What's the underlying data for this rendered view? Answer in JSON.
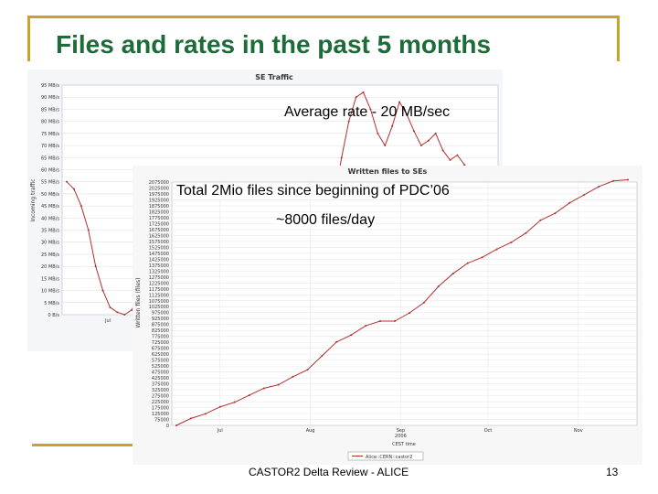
{
  "slide": {
    "title": "Files and rates in the past 5 months",
    "annotation_average_rate": "Average rate - 20 MB/sec",
    "annotation_total_files": "Total 2Mio files since beginning of PDC’06",
    "annotation_files_per_day": "~8000 files/day",
    "footer": "CASTOR2 Delta Review - ALICE",
    "page_number": "13"
  },
  "colors": {
    "title": "#1e6b3a",
    "frame": "#c8a22a",
    "series_line": "#b03030",
    "grid": "#dcdcdc"
  },
  "chart_data": [
    {
      "type": "line",
      "title": "SE Traffic",
      "ylabel": "Incoming traffic",
      "ylim": [
        0,
        95
      ],
      "y_tick_labels": [
        "0 B/s",
        "5 MB/s",
        "10 MB/s",
        "15 MB/s",
        "20 MB/s",
        "25 MB/s",
        "30 MB/s",
        "35 MB/s",
        "40 MB/s",
        "45 MB/s",
        "50 MB/s",
        "55 MB/s",
        "60 MB/s",
        "65 MB/s",
        "70 MB/s",
        "75 MB/s",
        "80 MB/s",
        "85 MB/s",
        "90 MB/s",
        "95 MB/s"
      ],
      "x_tick_labels": [
        "Jul"
      ],
      "grid": true,
      "series": [
        {
          "x": [
            0,
            1,
            2,
            3,
            4,
            5,
            6,
            7,
            8,
            9,
            10,
            11,
            12,
            13,
            14,
            15,
            16,
            17,
            18,
            19,
            20,
            21,
            22,
            23,
            24,
            25,
            26,
            27,
            28,
            29,
            30,
            31,
            32,
            33,
            34,
            35,
            36,
            37,
            38,
            39,
            40,
            41,
            42,
            43,
            44,
            45,
            46,
            47,
            48,
            49,
            50,
            51,
            52,
            53,
            54,
            55,
            56,
            57,
            58,
            59
          ],
          "values": [
            55,
            52,
            45,
            35,
            20,
            10,
            3,
            1,
            0,
            2,
            8,
            15,
            20,
            18,
            12,
            15,
            20,
            18,
            14,
            12,
            16,
            20,
            18,
            12,
            10,
            14,
            19,
            17,
            12,
            10,
            12,
            14,
            10,
            8,
            12,
            20,
            32,
            48,
            65,
            80,
            90,
            92,
            85,
            75,
            70,
            78,
            88,
            83,
            76,
            70,
            72,
            75,
            68,
            64,
            66,
            62,
            58,
            55,
            54,
            50
          ]
        }
      ]
    },
    {
      "type": "line",
      "title": "Written files to SEs",
      "ylabel": "Written files (files)",
      "xlabel": "CEST time",
      "ylim": [
        0,
        2100000
      ],
      "y_tick_labels": [
        "0",
        "75000",
        "125000",
        "175000",
        "225000",
        "275000",
        "325000",
        "375000",
        "425000",
        "475000",
        "525000",
        "575000",
        "625000",
        "675000",
        "725000",
        "775000",
        "825000",
        "875000",
        "925000",
        "975000",
        "1025000",
        "1075000",
        "1125000",
        "1175000",
        "1225000",
        "1275000",
        "1325000",
        "1375000",
        "1425000",
        "1475000",
        "1525000",
        "1575000",
        "1625000",
        "1675000",
        "1725000",
        "1775000",
        "1825000",
        "1875000",
        "1925000",
        "1975000",
        "2025000",
        "2075000"
      ],
      "x_tick_labels": [
        "Jul",
        "Aug",
        "Sep\n2006",
        "Oct",
        "Nov"
      ],
      "legend": "bottom",
      "grid": true,
      "series": [
        {
          "name": "Alice::CERN::castor2",
          "x": [
            0,
            5,
            10,
            15,
            20,
            25,
            30,
            35,
            40,
            45,
            50,
            55,
            60,
            65,
            70,
            75,
            80,
            85,
            90,
            95,
            100,
            105,
            110,
            115,
            120,
            125,
            130,
            135,
            140,
            145,
            150,
            155
          ],
          "values": [
            0,
            60000,
            100000,
            160000,
            200000,
            260000,
            320000,
            350000,
            420000,
            480000,
            600000,
            720000,
            780000,
            860000,
            900000,
            900000,
            970000,
            1060000,
            1200000,
            1310000,
            1400000,
            1450000,
            1520000,
            1580000,
            1660000,
            1770000,
            1830000,
            1920000,
            1990000,
            2060000,
            2110000,
            2120000
          ]
        }
      ]
    }
  ]
}
